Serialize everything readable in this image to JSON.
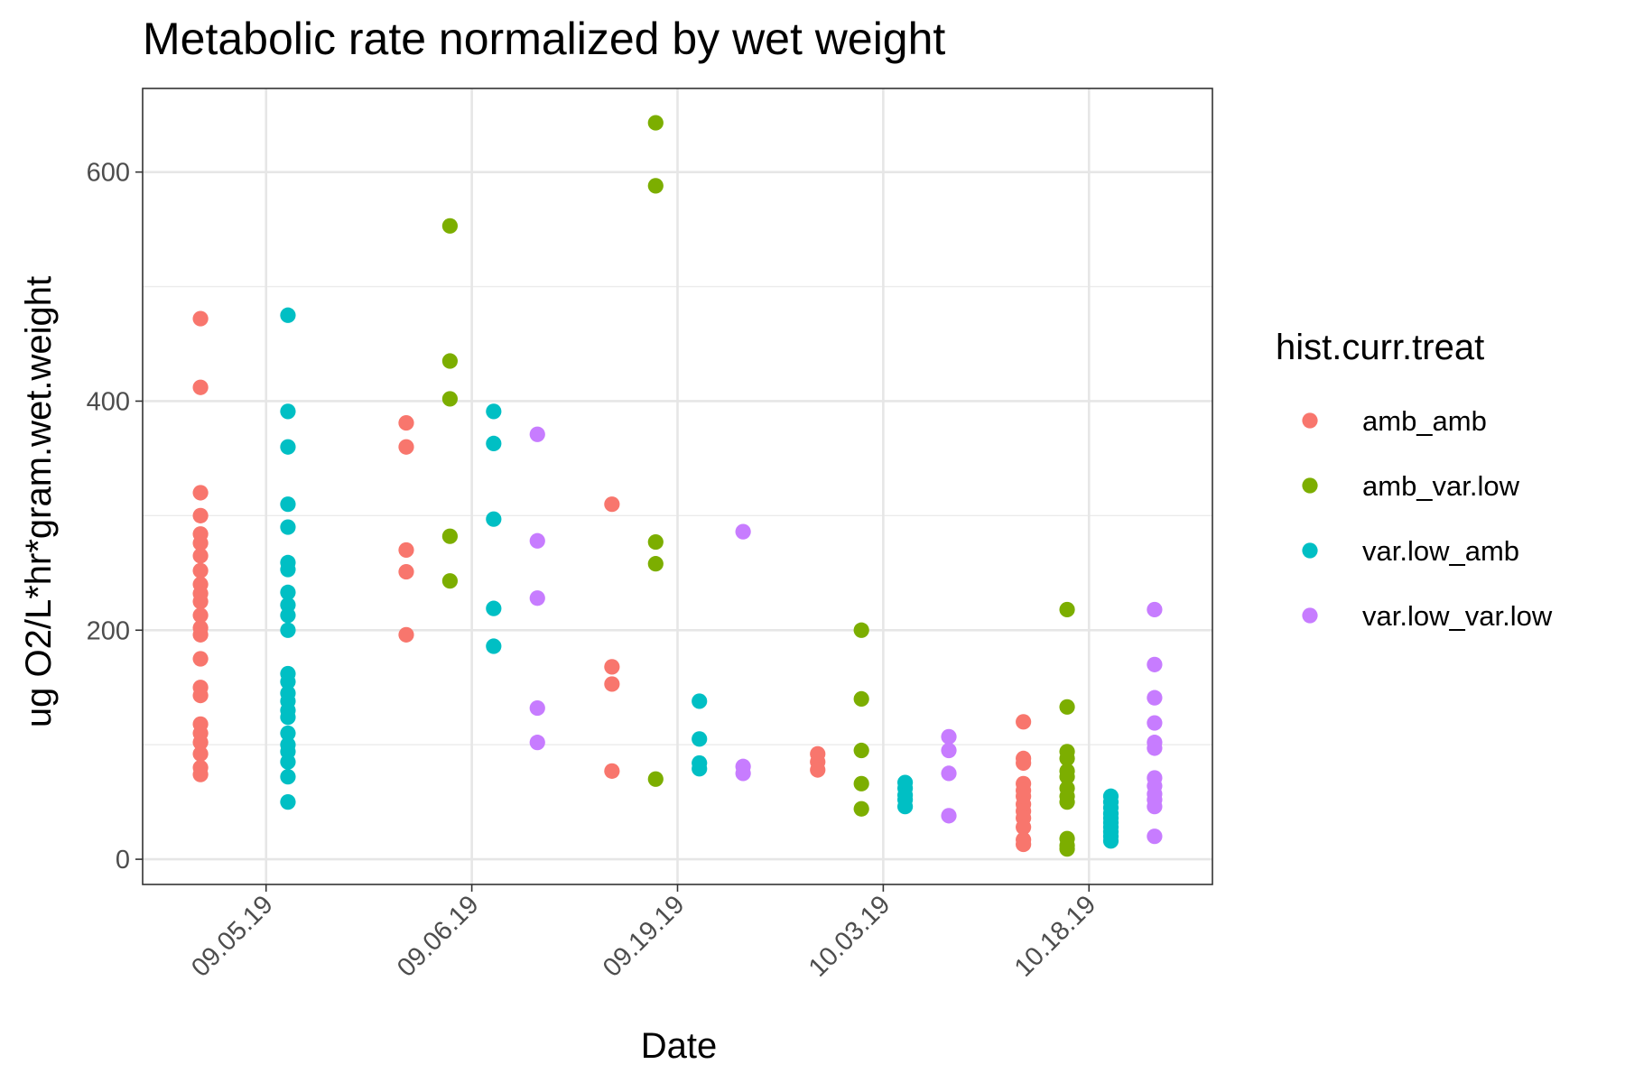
{
  "chart_data": {
    "type": "scatter",
    "title": "Metabolic rate normalized by wet weight",
    "xlabel": "Date",
    "ylabel": "ug O2/L*hr*gram.wet.weight",
    "categories": [
      "09.05.19",
      "09.06.19",
      "09.19.19",
      "10.03.19",
      "10.18.19"
    ],
    "ylim": [
      -22,
      673
    ],
    "y_ticks": [
      0,
      200,
      400,
      600
    ],
    "grid": true,
    "legend": {
      "title": "hist.curr.treat",
      "placement": "right"
    },
    "series": [
      {
        "name": "amb_amb",
        "color": "#F8766D",
        "points": [
          {
            "x": "09.05.19",
            "y": [
              472,
              412,
              320,
              300,
              284,
              276,
              265,
              252,
              240,
              232,
              225,
              213,
              202,
              196,
              175,
              150,
              143,
              118,
              110,
              102,
              92,
              80,
              74
            ]
          },
          {
            "x": "09.06.19",
            "y": [
              381,
              360,
              270,
              251,
              196
            ]
          },
          {
            "x": "09.19.19",
            "y": [
              310,
              168,
              153,
              77
            ]
          },
          {
            "x": "10.03.19",
            "y": [
              92,
              85,
              78
            ]
          },
          {
            "x": "10.18.19",
            "y": [
              120,
              88,
              84,
              66,
              60,
              55,
              48,
              42,
              36,
              28,
              17,
              13
            ]
          }
        ]
      },
      {
        "name": "amb_var.low",
        "color": "#7CAE00",
        "points": [
          {
            "x": "09.06.19",
            "y": [
              553,
              435,
              402,
              282,
              243
            ]
          },
          {
            "x": "09.19.19",
            "y": [
              643,
              588,
              277,
              258,
              70
            ]
          },
          {
            "x": "10.03.19",
            "y": [
              200,
              140,
              95,
              66,
              44
            ]
          },
          {
            "x": "10.18.19",
            "y": [
              218,
              133,
              94,
              88,
              77,
              72,
              62,
              55,
              50,
              18,
              12,
              9
            ]
          }
        ]
      },
      {
        "name": "var.low_amb",
        "color": "#00BFC4",
        "points": [
          {
            "x": "09.05.19",
            "y": [
              475,
              391,
              360,
              310,
              290,
              259,
              253,
              233,
              222,
              213,
              200,
              162,
              155,
              145,
              138,
              130,
              124,
              110,
              100,
              94,
              85,
              72,
              50
            ]
          },
          {
            "x": "09.06.19",
            "y": [
              391,
              363,
              297,
              219,
              186
            ]
          },
          {
            "x": "09.19.19",
            "y": [
              138,
              105,
              84,
              79
            ]
          },
          {
            "x": "10.03.19",
            "y": [
              67,
              62,
              56,
              52,
              46
            ]
          },
          {
            "x": "10.18.19",
            "y": [
              55,
              50,
              45,
              40,
              36,
              32,
              28,
              24,
              20,
              16
            ]
          }
        ]
      },
      {
        "name": "var.low_var.low",
        "color": "#C77CFF",
        "points": [
          {
            "x": "09.06.19",
            "y": [
              371,
              278,
              228,
              132,
              102
            ]
          },
          {
            "x": "09.19.19",
            "y": [
              286,
              81,
              75
            ]
          },
          {
            "x": "10.03.19",
            "y": [
              107,
              95,
              75,
              38
            ]
          },
          {
            "x": "10.18.19",
            "y": [
              218,
              170,
              141,
              119,
              102,
              97,
              71,
              64,
              57,
              52,
              46,
              20
            ]
          }
        ]
      }
    ]
  }
}
